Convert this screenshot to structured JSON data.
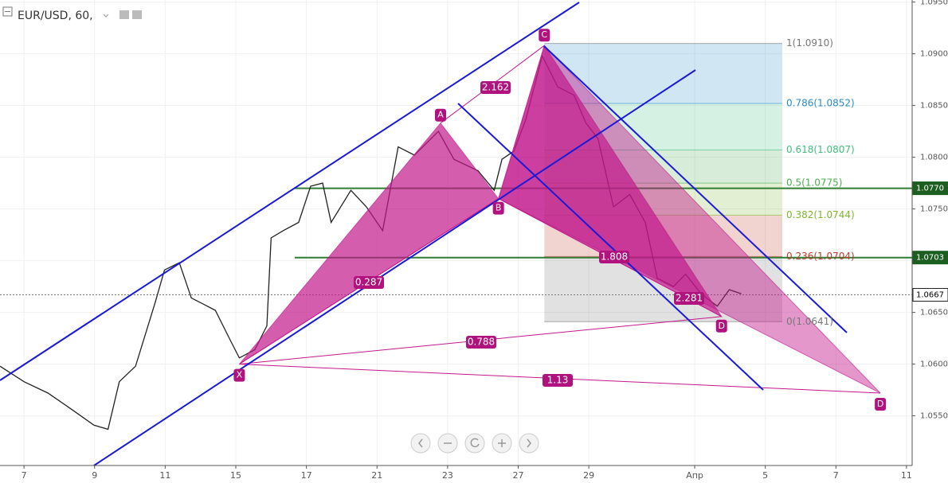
{
  "chart_data": {
    "type": "line",
    "title": "EUR/USD, 60,",
    "color": "#222222",
    "x": [
      -0.34,
      0,
      0.34,
      0.68,
      0.99,
      1.19,
      1.35,
      1.58,
      1.86,
      1.99,
      2.2,
      2.37,
      2.71,
      2.93,
      3.05,
      3.27,
      3.44,
      3.5,
      3.67,
      3.89,
      4.06,
      4.23,
      4.35,
      4.63,
      4.85,
      5.08,
      5.3,
      5.53,
      5.87,
      6.09,
      6.43,
      6.66,
      6.77,
      6.94,
      7.11,
      7.34,
      7.56,
      7.79,
      7.96,
      8.13,
      8.35,
      8.58,
      8.8,
      8.97,
      9.2,
      9.37,
      9.59,
      9.82,
      9.99,
      10.16
    ],
    "values": [
      1.0598,
      1.0583,
      1.0572,
      1.0556,
      1.0541,
      1.0537,
      1.0583,
      1.0598,
      1.066,
      1.0691,
      1.0698,
      1.0664,
      1.0652,
      1.0622,
      1.0606,
      1.0614,
      1.0637,
      1.0722,
      1.0729,
      1.0737,
      1.0772,
      1.0775,
      1.0737,
      1.0768,
      1.0752,
      1.0729,
      1.081,
      1.0802,
      1.0825,
      1.0798,
      1.0787,
      1.0768,
      1.0798,
      1.0806,
      1.0837,
      1.0898,
      1.0868,
      1.086,
      1.0833,
      1.0818,
      1.0752,
      1.0764,
      1.0737,
      1.0683,
      1.0675,
      1.0687,
      1.0668,
      1.0656,
      1.0672,
      1.0668
    ],
    "xlim": [
      -0.34,
      12.58
    ],
    "xticks": [
      {
        "value": 0,
        "label": "7"
      },
      {
        "value": 1,
        "label": "9"
      },
      {
        "value": 2,
        "label": "11"
      },
      {
        "value": 3,
        "label": "15"
      },
      {
        "value": 4,
        "label": "17"
      },
      {
        "value": 5,
        "label": "21"
      },
      {
        "value": 6,
        "label": "23"
      },
      {
        "value": 7,
        "label": "27"
      },
      {
        "value": 8,
        "label": "29"
      },
      {
        "value": 9.5,
        "label": "Апр"
      },
      {
        "value": 10.5,
        "label": "5"
      },
      {
        "value": 11.5,
        "label": "7"
      },
      {
        "value": 12.5,
        "label": "11"
      }
    ],
    "ylim": [
      1.0502,
      1.0952
    ],
    "yticks": [
      {
        "value": 1.055,
        "label": "1.0550"
      },
      {
        "value": 1.06,
        "label": "1.0600"
      },
      {
        "value": 1.065,
        "label": "1.0650"
      },
      {
        "value": 1.07,
        "label": "1.0700"
      },
      {
        "value": 1.075,
        "label": "1.0750"
      },
      {
        "value": 1.08,
        "label": "1.0800"
      },
      {
        "value": 1.085,
        "label": "1.0850"
      },
      {
        "value": 1.09,
        "label": "1.0900"
      },
      {
        "value": 1.095,
        "label": "1.0950"
      }
    ],
    "grid": true,
    "fib_levels": [
      {
        "value": 1.091,
        "label": "1(1.0910)",
        "color": "#787878"
      },
      {
        "value": 1.0852,
        "label": "0.786(1.0852)",
        "color": "#2a8dc7"
      },
      {
        "value": 1.0807,
        "label": "0.618(1.0807)",
        "color": "#3fbf7f"
      },
      {
        "value": 1.0775,
        "label": "0.5(1.0775)",
        "color": "#4caf50"
      },
      {
        "value": 1.0744,
        "label": "0.382(1.0744)",
        "color": "#81b532"
      },
      {
        "value": 1.0704,
        "label": "0.236(1.0704)",
        "color": "#c0392b"
      },
      {
        "value": 1.0641,
        "label": "0(1.0641)",
        "color": "#787878"
      }
    ],
    "pattern_points": [
      {
        "label": "X",
        "x": 3.05,
        "y": 1.06
      },
      {
        "label": "A",
        "x": 5.9,
        "y": 1.0833
      },
      {
        "label": "B",
        "x": 6.72,
        "y": 1.076
      },
      {
        "label": "C",
        "x": 7.37,
        "y": 1.0908
      },
      {
        "label": "D",
        "x": 9.88,
        "y": 1.0646
      },
      {
        "label": "D",
        "x": 12.13,
        "y": 1.0572
      }
    ],
    "ratio_labels": [
      "0.287",
      "2.162",
      "1.808",
      "2.281",
      "0.788",
      "1.13"
    ],
    "price_tags": [
      {
        "value": 1.077,
        "label": "1.0770",
        "color": "#1b5e20"
      },
      {
        "value": 1.0703,
        "label": "1.0703",
        "color": "#1b5e20"
      },
      {
        "value": 1.0667,
        "label": "1.0667",
        "color": "#ffffff"
      }
    ]
  }
}
